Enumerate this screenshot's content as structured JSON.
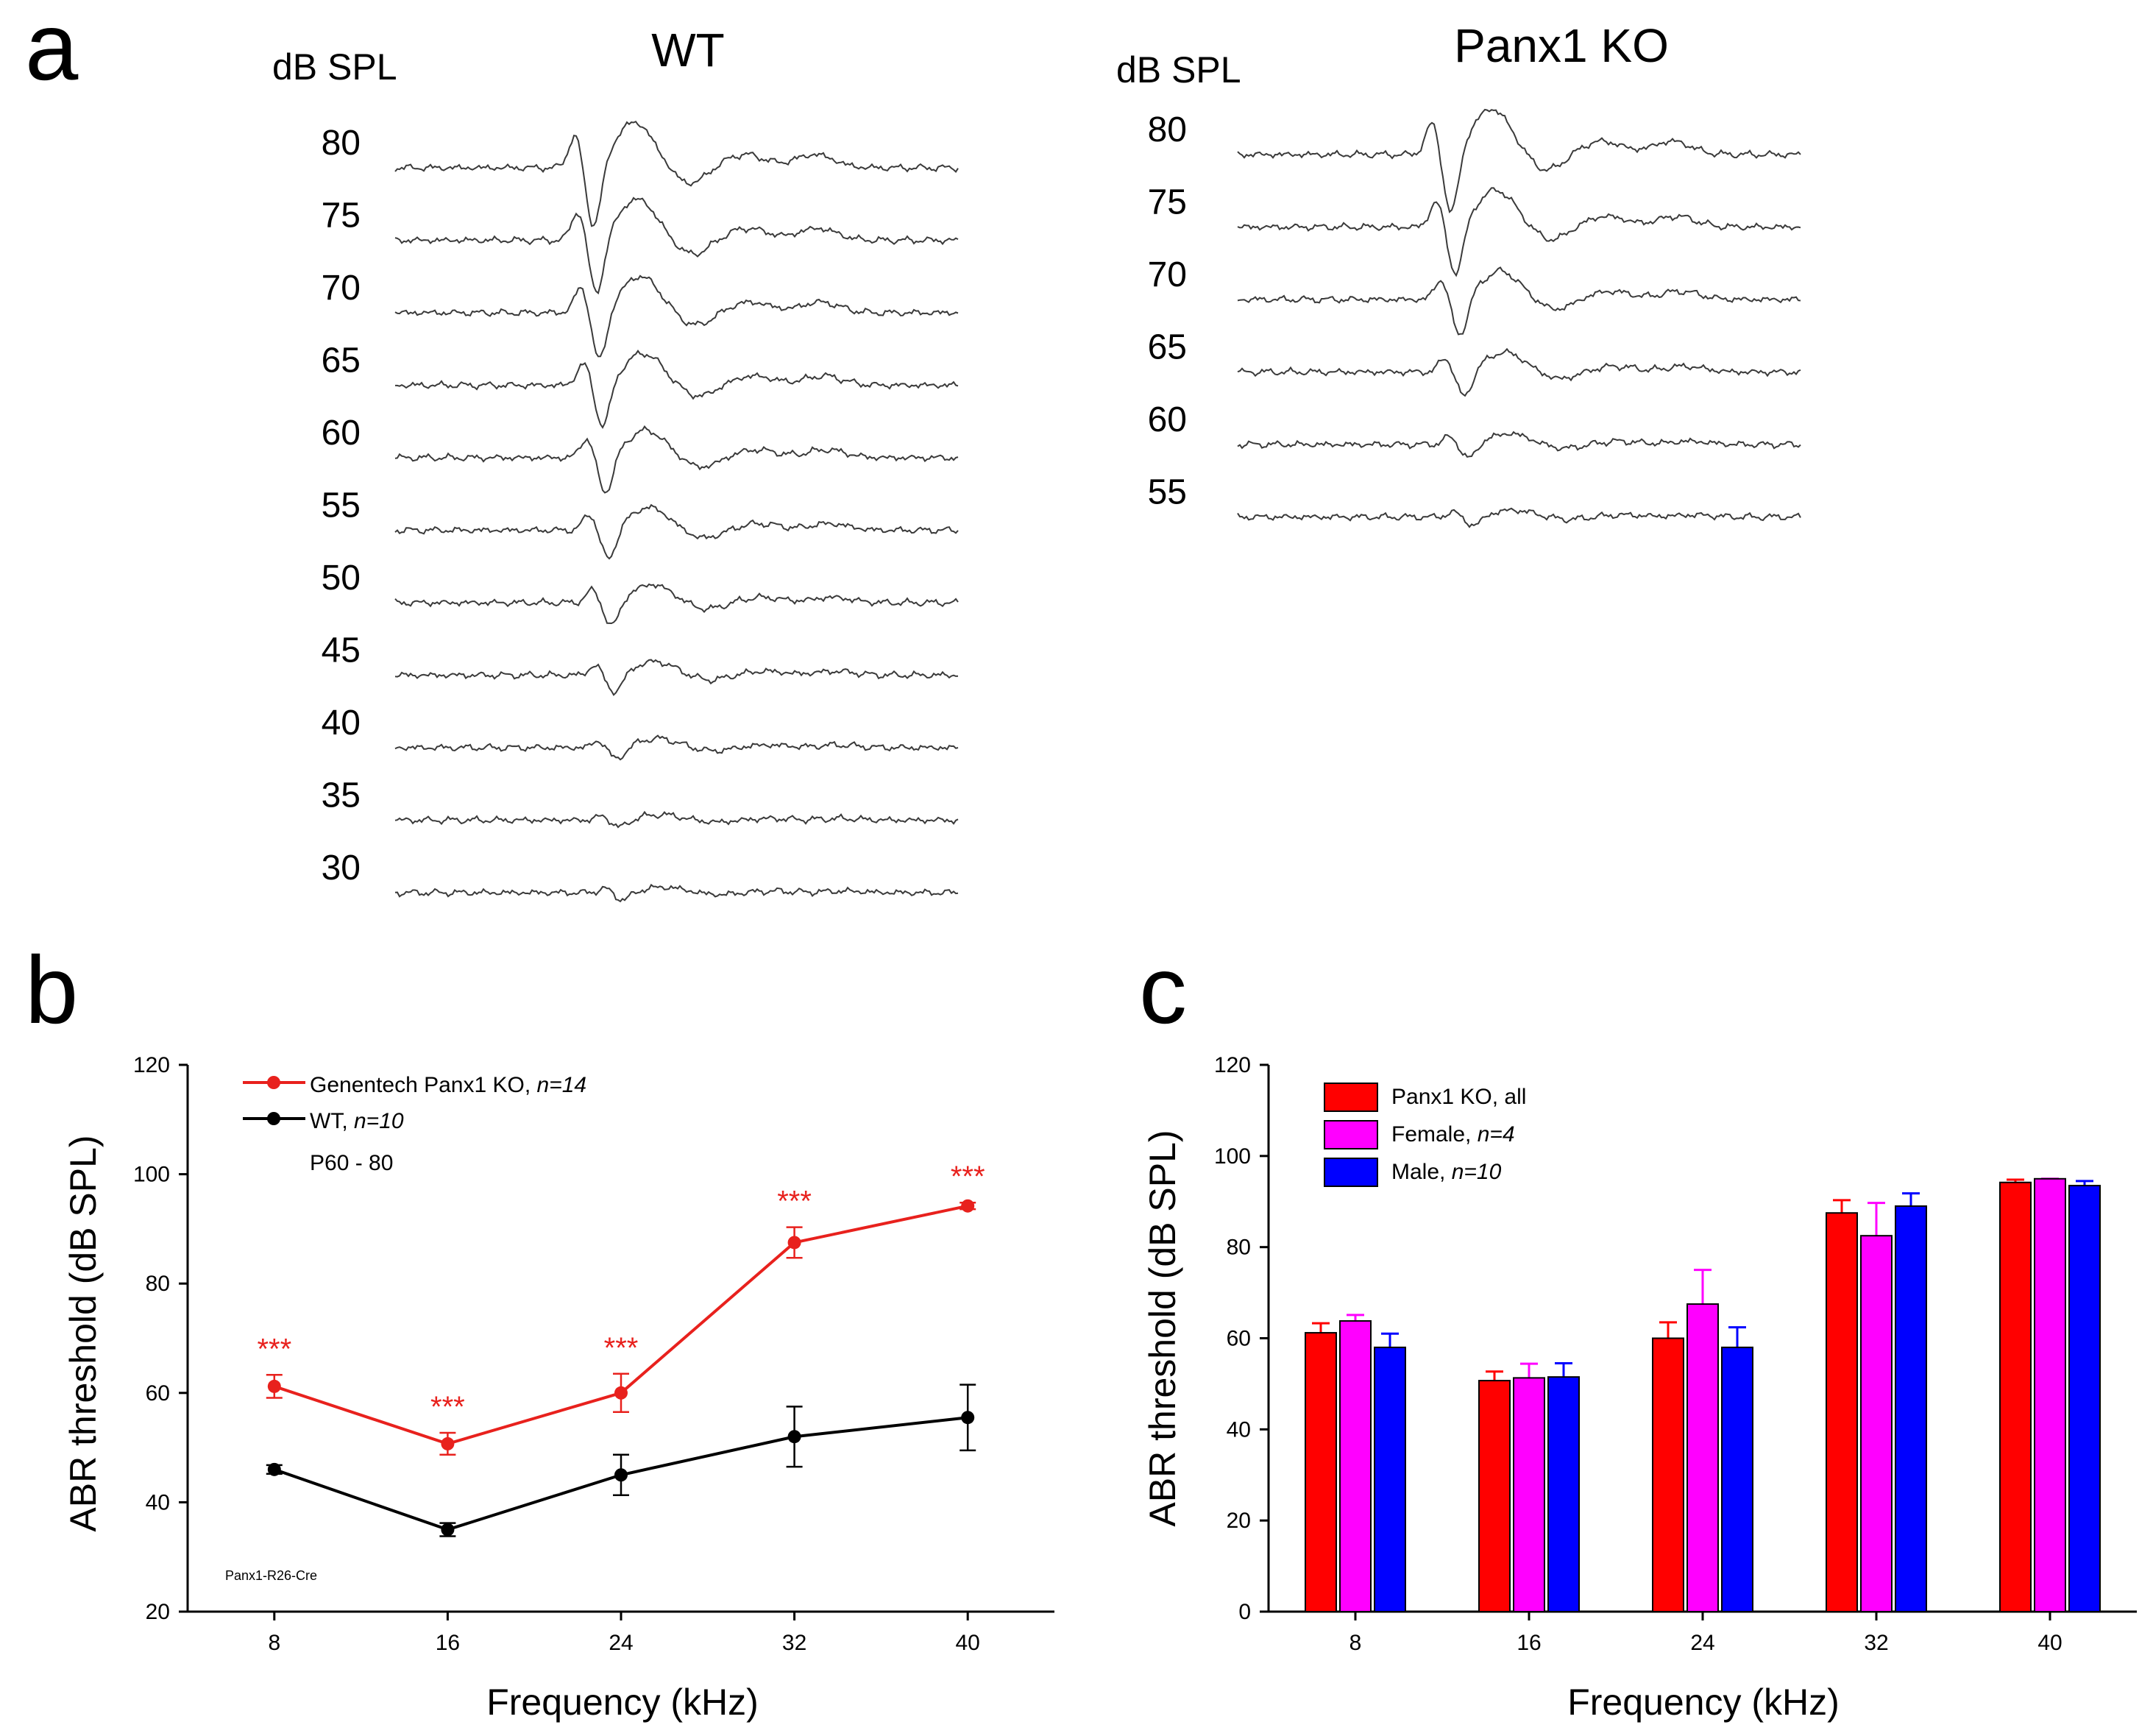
{
  "panel_a": {
    "letter": "a",
    "db_label_left": "dB SPL",
    "db_label_right": "dB SPL",
    "wt_title": "WT",
    "ko_title": "Panx1 KO",
    "wt_levels": [
      "80",
      "75",
      "70",
      "65",
      "60",
      "55",
      "50",
      "45",
      "40",
      "35",
      "30"
    ],
    "ko_levels": [
      "80",
      "75",
      "70",
      "65",
      "60",
      "55"
    ]
  },
  "chart_data": [
    {
      "panel": "b",
      "type": "line",
      "xlabel": "Frequency (kHz)",
      "ylabel": "ABR threshold (dB SPL)",
      "categories": [
        "8",
        "16",
        "24",
        "32",
        "40"
      ],
      "x": [
        8,
        16,
        24,
        32,
        40
      ],
      "xlim": [
        4,
        44
      ],
      "ylim": [
        20,
        120
      ],
      "yticks": [
        "20",
        "40",
        "60",
        "80",
        "100",
        "120"
      ],
      "series": [
        {
          "name": "Genentech Panx1 KO, ",
          "n_label": "n=14",
          "color": "#e8211d",
          "values": [
            61.2,
            50.7,
            60.0,
            87.5,
            94.2
          ],
          "errors": [
            2.1,
            2.0,
            3.5,
            2.8,
            0.6
          ]
        },
        {
          "name": "WT, ",
          "n_label": "n=10",
          "color": "#000000",
          "values": [
            46.0,
            35.0,
            45.0,
            52.0,
            55.5
          ],
          "errors": [
            0.8,
            1.2,
            3.7,
            5.5,
            6.0
          ]
        }
      ],
      "significance": [
        "***",
        "***",
        "***",
        "***",
        "***"
      ],
      "annotations": [
        "P60 - 80",
        "Panx1-R26-Cre"
      ],
      "legend": "top-left"
    },
    {
      "panel": "c",
      "type": "bar",
      "xlabel": "Frequency (kHz)",
      "ylabel": "ABR threshold (dB SPL)",
      "categories": [
        "8",
        "16",
        "24",
        "32",
        "40"
      ],
      "ylim": [
        0,
        120
      ],
      "yticks": [
        "0",
        "20",
        "40",
        "60",
        "80",
        "100",
        "120"
      ],
      "series": [
        {
          "name": "Panx1 KO, all",
          "n_label": "",
          "color": "#ff0000",
          "values": [
            61.2,
            50.7,
            60.0,
            87.5,
            94.2
          ],
          "errors": [
            2.1,
            2.0,
            3.5,
            2.8,
            0.6
          ]
        },
        {
          "name": "Female, ",
          "n_label": "n=4",
          "color": "#ff00ff",
          "values": [
            63.8,
            51.3,
            67.5,
            82.5,
            95.0
          ],
          "errors": [
            1.3,
            3.1,
            7.5,
            7.2,
            0.0
          ]
        },
        {
          "name": "Male, ",
          "n_label": "n=10",
          "color": "#0000ff",
          "values": [
            58.0,
            51.5,
            58.0,
            89.0,
            93.5
          ],
          "errors": [
            3.0,
            3.0,
            4.4,
            2.8,
            1.0
          ]
        }
      ],
      "legend": "top-left"
    }
  ]
}
